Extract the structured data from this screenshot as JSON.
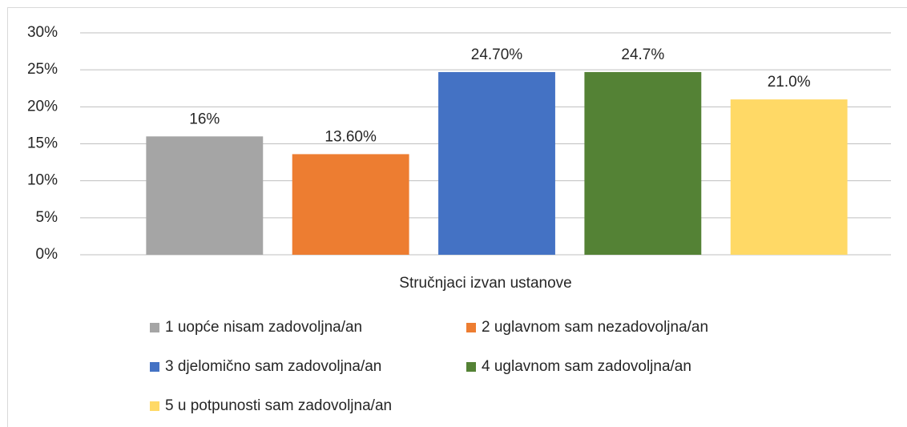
{
  "chart_data": {
    "type": "bar",
    "categories": [
      "Stručnjaci izvan ustanove"
    ],
    "series": [
      {
        "name": "1 uopće nisam zadovoljna/an",
        "color": "#a5a5a5",
        "values": [
          16
        ],
        "value_labels": [
          "16%"
        ]
      },
      {
        "name": "2 uglavnom sam nezadovoljna/an",
        "color": "#ed7d31",
        "values": [
          13.6
        ],
        "value_labels": [
          "13.60%"
        ]
      },
      {
        "name": "3 djelomično sam zadovoljna/an",
        "color": "#4472c4",
        "values": [
          24.7
        ],
        "value_labels": [
          "24.70%"
        ]
      },
      {
        "name": "4 uglavnom sam zadovoljna/an",
        "color": "#548235",
        "values": [
          24.7
        ],
        "value_labels": [
          "24.7%"
        ]
      },
      {
        "name": "5 u potpunosti sam zadovoljna/an",
        "color": "#ffd966",
        "values": [
          21.0
        ],
        "value_labels": [
          "21.0%"
        ]
      }
    ],
    "ylim": [
      0,
      30
    ],
    "yticks": [
      {
        "value": 0,
        "label": "0%"
      },
      {
        "value": 5,
        "label": "5%"
      },
      {
        "value": 10,
        "label": "10%"
      },
      {
        "value": 15,
        "label": "15%"
      },
      {
        "value": 20,
        "label": "20%"
      },
      {
        "value": 25,
        "label": "25%"
      },
      {
        "value": 30,
        "label": "30%"
      }
    ],
    "grid": true,
    "legend": "bottom"
  }
}
